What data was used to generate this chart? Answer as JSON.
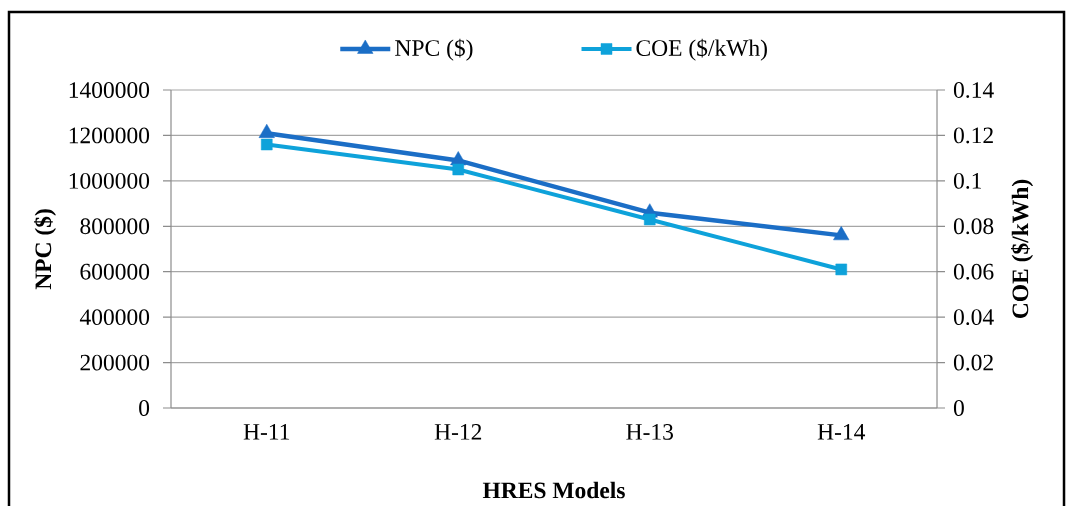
{
  "chart_data": {
    "type": "line",
    "xlabel": "HRES Models",
    "ylabel": "NPC ($)",
    "y2label": "COE ($/kWh)",
    "categories": [
      "H-11",
      "H-12",
      "H-13",
      "H-14"
    ],
    "series": [
      {
        "name": "NPC ($)",
        "color": "#1b6ec6",
        "values": [
          1210000,
          1090000,
          860000,
          760000
        ],
        "marker": "triangle"
      },
      {
        "name": "COE ($/kWh)",
        "color": "#0ea2da",
        "values": [
          0.116,
          0.105,
          0.083,
          0.061
        ],
        "marker": "square",
        "axis": "y2"
      }
    ],
    "ylim": [
      0,
      1400000
    ],
    "yticks": [
      0,
      200000,
      400000,
      600000,
      800000,
      1000000,
      1200000,
      1400000
    ],
    "y2lim": [
      0,
      0.14
    ],
    "y2ticks": [
      0,
      0.02,
      0.04,
      0.06,
      0.08,
      0.1,
      0.12,
      0.14
    ],
    "grid": "y",
    "legend": "top",
    "line_style": "solid"
  }
}
